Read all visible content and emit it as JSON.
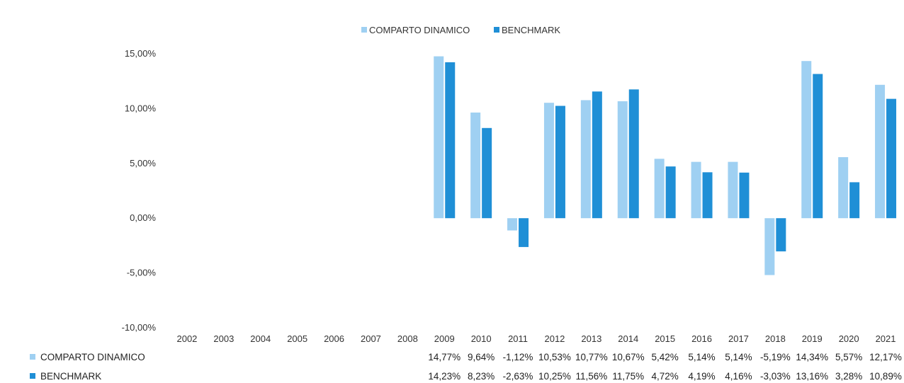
{
  "chart_data": {
    "type": "bar",
    "title": "",
    "xlabel": "",
    "ylabel": "",
    "ylim": [
      -10,
      15
    ],
    "yticks": [
      "15,00%",
      "10,00%",
      "5,00%",
      "0,00%",
      "-5,00%",
      "-10,00%"
    ],
    "ytick_values": [
      15,
      10,
      5,
      0,
      -5,
      -10
    ],
    "legend_position": "top-center",
    "grid": false,
    "categories": [
      "2002",
      "2003",
      "2004",
      "2005",
      "2006",
      "2007",
      "2008",
      "2009",
      "2010",
      "2011",
      "2012",
      "2013",
      "2014",
      "2015",
      "2016",
      "2017",
      "2018",
      "2019",
      "2020",
      "2021"
    ],
    "series": [
      {
        "name": "COMPARTO DINAMICO",
        "color": "#9fd0f2",
        "values": [
          null,
          null,
          null,
          null,
          null,
          null,
          null,
          14.77,
          9.64,
          -1.12,
          10.53,
          10.77,
          10.67,
          5.42,
          5.14,
          5.14,
          -5.19,
          14.34,
          5.57,
          12.17
        ],
        "labels": [
          "",
          "",
          "",
          "",
          "",
          "",
          "",
          "14,77%",
          "9,64%",
          "-1,12%",
          "10,53%",
          "10,77%",
          "10,67%",
          "5,42%",
          "5,14%",
          "5,14%",
          "-5,19%",
          "14,34%",
          "5,57%",
          "12,17%"
        ]
      },
      {
        "name": "BENCHMARK",
        "color": "#1f8fd6",
        "values": [
          null,
          null,
          null,
          null,
          null,
          null,
          null,
          14.23,
          8.23,
          -2.63,
          10.25,
          11.56,
          11.75,
          4.72,
          4.19,
          4.16,
          -3.03,
          13.16,
          3.28,
          10.89
        ],
        "labels": [
          "",
          "",
          "",
          "",
          "",
          "",
          "",
          "14,23%",
          "8,23%",
          "-2,63%",
          "10,25%",
          "11,56%",
          "11,75%",
          "4,72%",
          "4,19%",
          "4,16%",
          "-3,03%",
          "13,16%",
          "3,28%",
          "10,89%"
        ]
      }
    ]
  }
}
